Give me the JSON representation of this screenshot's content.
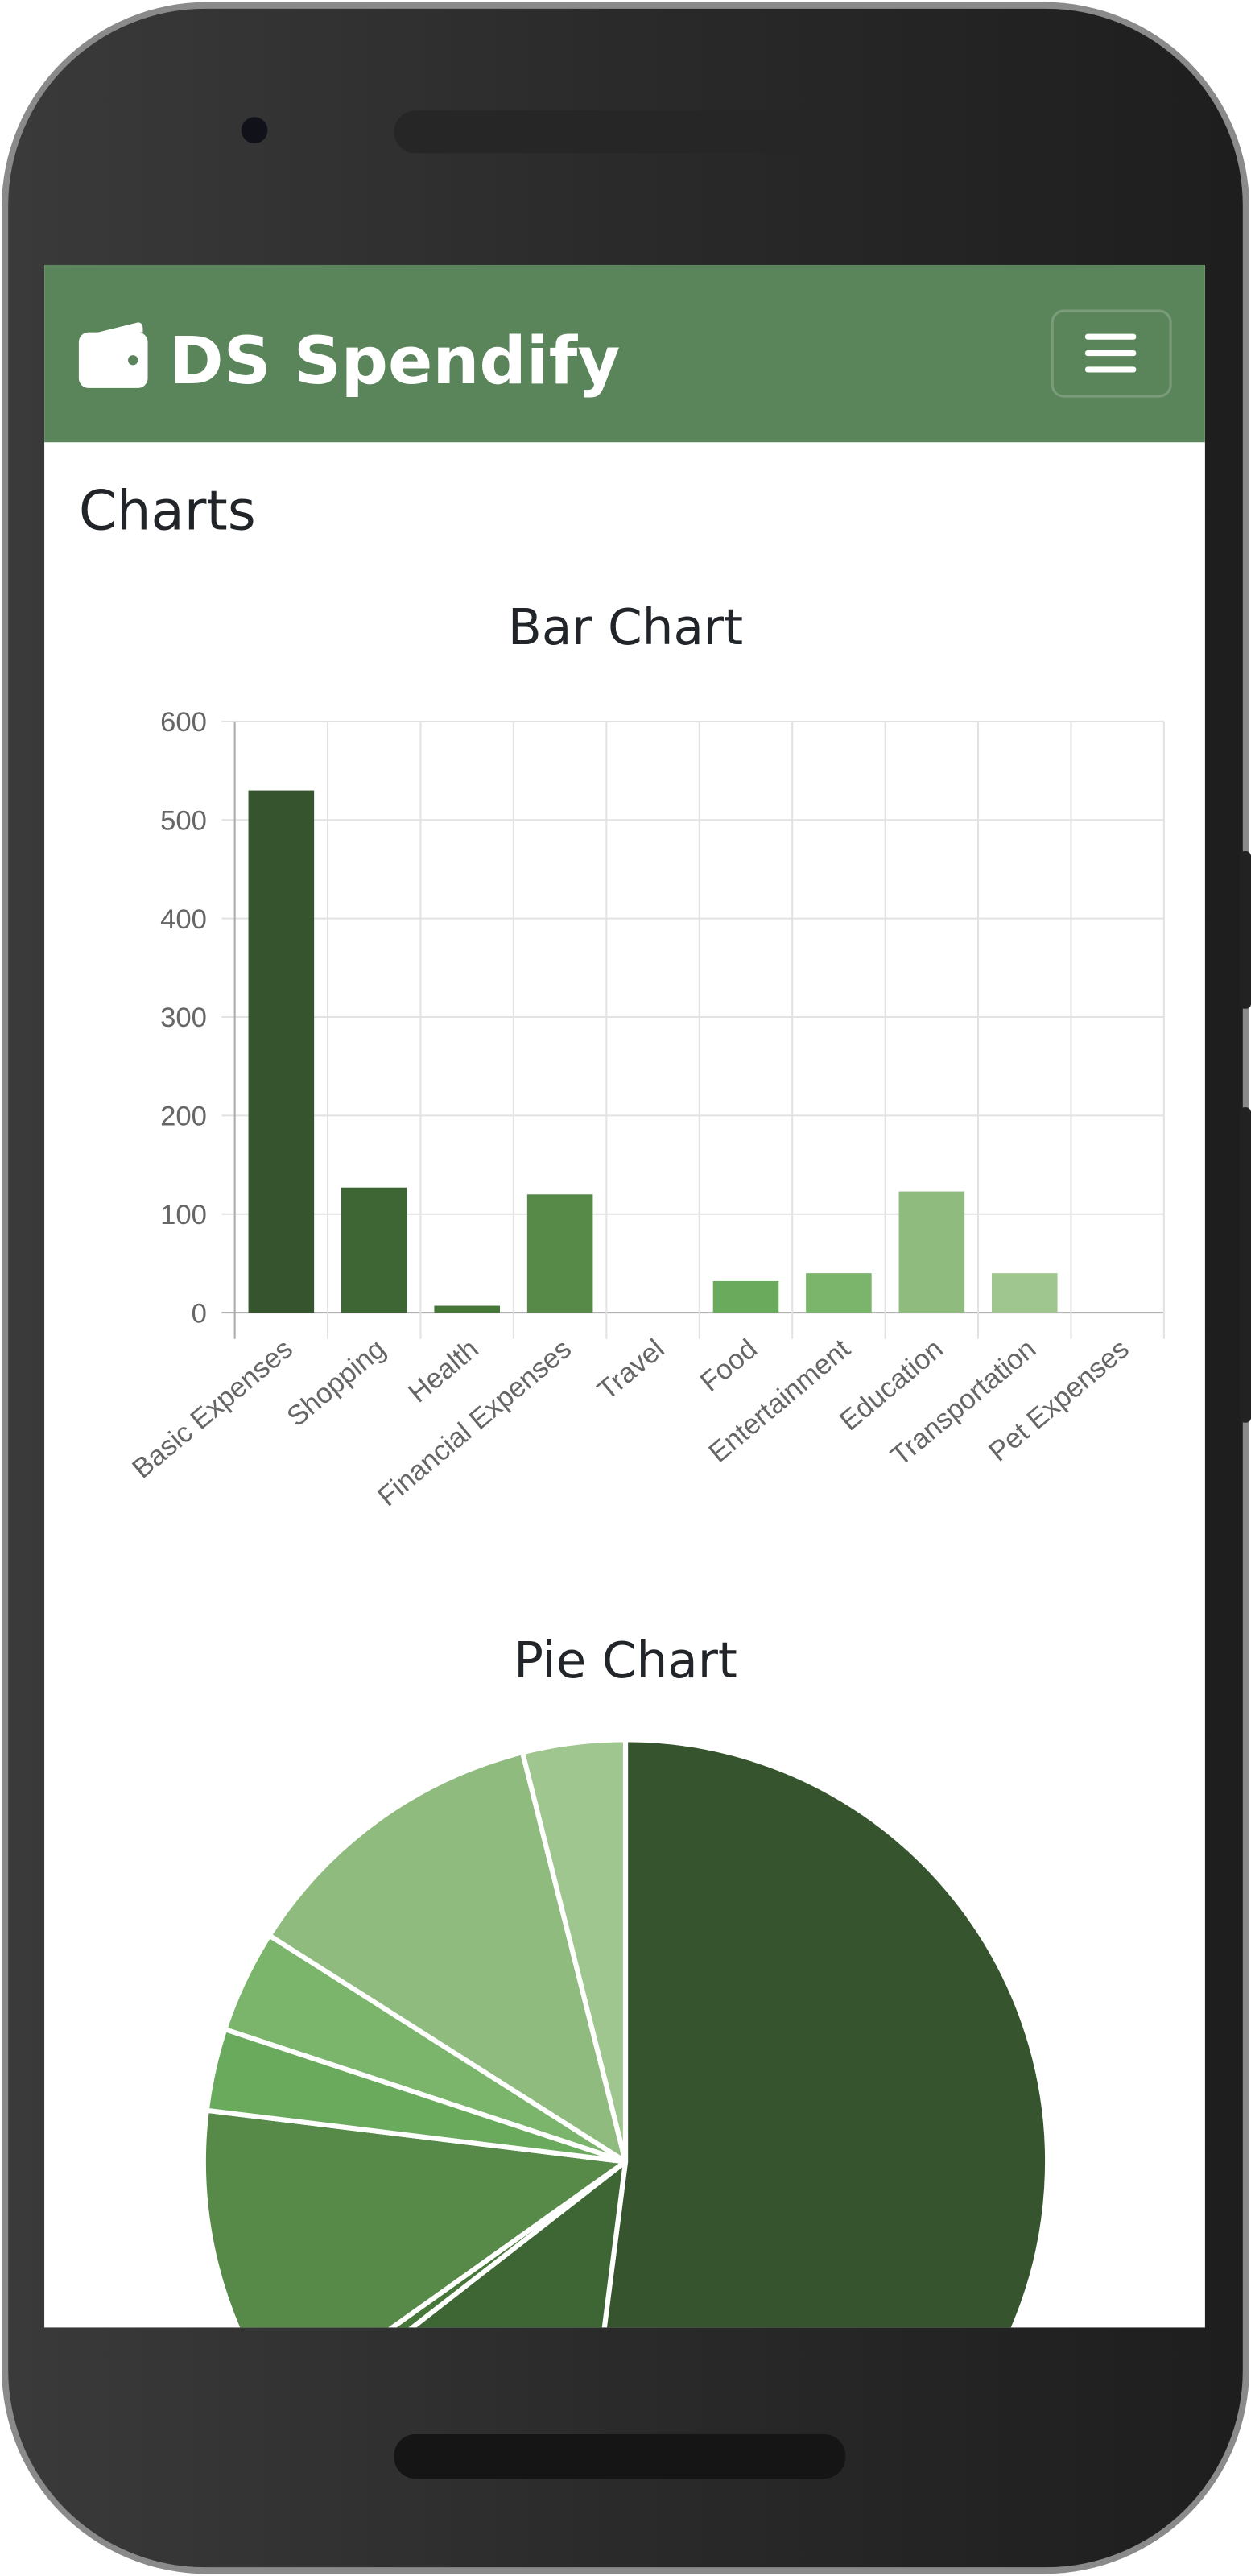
{
  "app": {
    "brand": "DS Spendify",
    "heading": "Charts"
  },
  "chart_data": [
    {
      "type": "bar",
      "title": "Bar Chart",
      "categories": [
        "Basic Expenses",
        "Shopping",
        "Health",
        "Financial Expenses",
        "Travel",
        "Food",
        "Entertainment",
        "Education",
        "Transportation",
        "Pet Expenses"
      ],
      "values": [
        530,
        127,
        7,
        120,
        0,
        32,
        40,
        123,
        40,
        0
      ],
      "colors": [
        "#36552f",
        "#3e6634",
        "#467739",
        "#578a48",
        "#5f9a50",
        "#6aaa5c",
        "#7ab56b",
        "#8fbb7f",
        "#9fc68f",
        "#aed0a0"
      ],
      "ylim": [
        0,
        600
      ],
      "yticks": [
        0,
        100,
        200,
        300,
        400,
        500,
        600
      ],
      "grid": true
    },
    {
      "type": "pie",
      "title": "Pie Chart",
      "values": [
        530,
        127,
        7,
        120,
        0,
        32,
        40,
        123,
        40,
        0
      ],
      "colors": [
        "#36552f",
        "#3e6634",
        "#467739",
        "#578a48",
        "#5f9a50",
        "#6aaa5c",
        "#7ab56b",
        "#8fbb7f",
        "#9fc68f",
        "#aed0a0"
      ]
    }
  ]
}
